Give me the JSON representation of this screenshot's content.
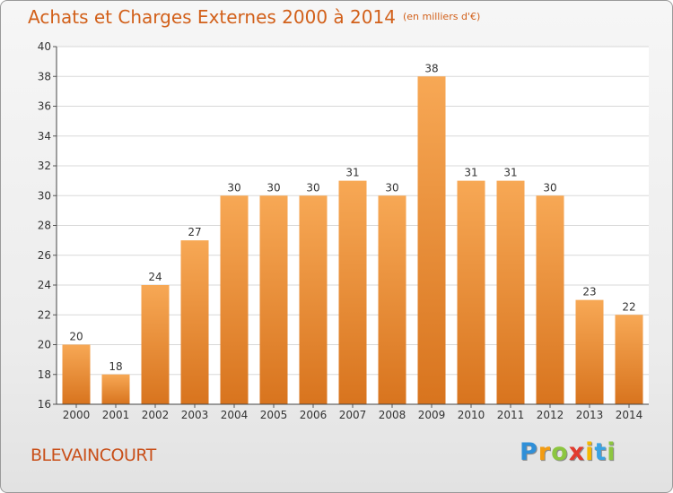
{
  "header": {
    "title": "Achats et Charges Externes 2000 à 2014",
    "unit": "(en milliers d'€)"
  },
  "footer": {
    "commune": "BLEVAINCOURT",
    "logo_letters": [
      "P",
      "r",
      "o",
      "x",
      "i",
      "t",
      "i"
    ],
    "logo_colors": [
      "#2f8fd8",
      "#f39c12",
      "#8cc63f",
      "#e23b2e",
      "#f5b800",
      "#3aa3e3",
      "#8cc63f"
    ]
  },
  "colors": {
    "bar_light": "#f7a855",
    "bar_dark": "#d8741e",
    "accent": "#d2601a"
  },
  "chart_data": {
    "type": "bar",
    "title": "Achats et Charges Externes 2000 à 2014",
    "subtitle": "(en milliers d'€)",
    "xlabel": "",
    "ylabel": "",
    "categories": [
      "2000",
      "2001",
      "2002",
      "2003",
      "2004",
      "2005",
      "2006",
      "2007",
      "2008",
      "2009",
      "2010",
      "2011",
      "2012",
      "2013",
      "2014"
    ],
    "values": [
      20,
      18,
      24,
      27,
      30,
      30,
      30,
      31,
      30,
      38,
      31,
      31,
      30,
      23,
      22
    ],
    "ylim": [
      16,
      40
    ],
    "yticks": [
      16,
      18,
      20,
      22,
      24,
      26,
      28,
      30,
      32,
      34,
      36,
      38,
      40
    ],
    "grid": true,
    "legend": "none"
  }
}
